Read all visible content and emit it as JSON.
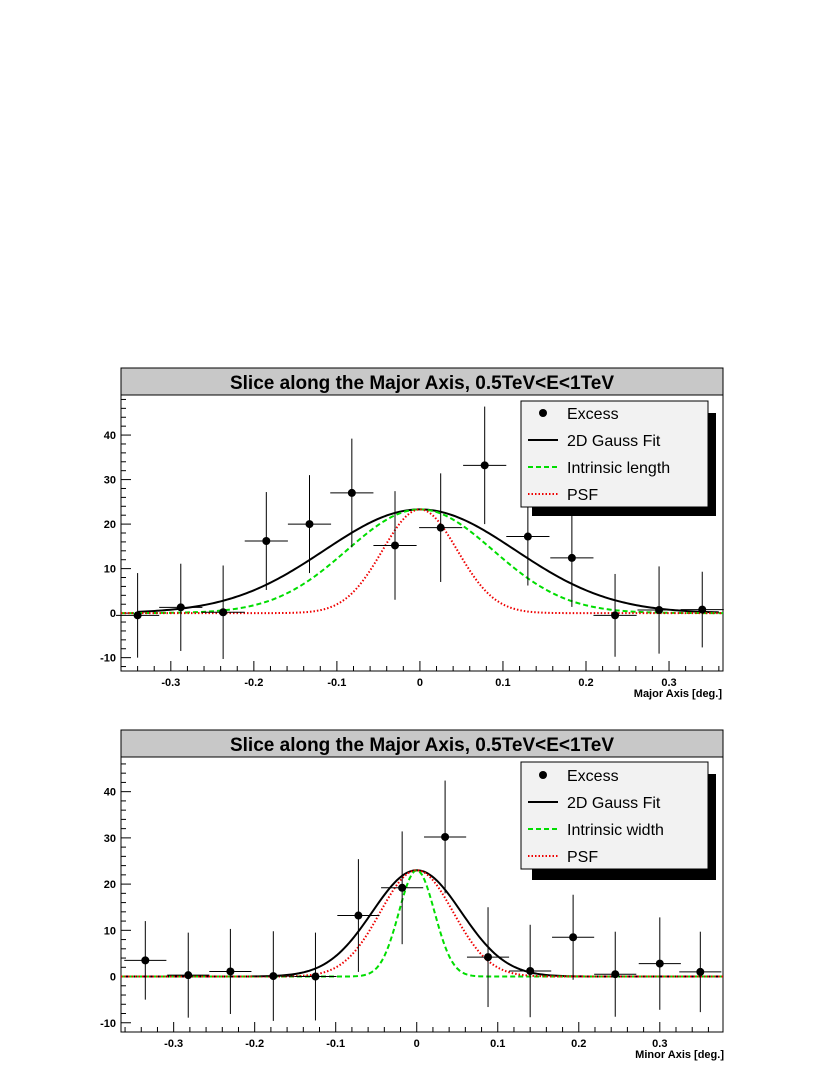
{
  "chart_data": [
    {
      "type": "scatter",
      "title": "Slice along the Major Axis, 0.5TeV<E<1TeV",
      "xlabel": "Major Axis [deg.]",
      "ylabel": "",
      "xlim": [
        -0.36,
        0.365
      ],
      "ylim": [
        -13,
        49
      ],
      "x_ticks": [
        -0.3,
        -0.2,
        -0.1,
        0,
        0.1,
        0.2,
        0.3
      ],
      "x_tick_labels": [
        "-0.3",
        "-0.2",
        "-0.1",
        "0",
        "0.1",
        "0.2",
        "0.3"
      ],
      "y_ticks": [
        -10,
        0,
        10,
        20,
        30,
        40
      ],
      "y_tick_labels": [
        "-10",
        "0",
        "10",
        "20",
        "30",
        "40"
      ],
      "grid": false,
      "legend_position": "top-right",
      "legend": [
        "Excess",
        "2D Gauss Fit",
        "Intrinsic length",
        "PSF"
      ],
      "series": [
        {
          "name": "Excess",
          "style": "points",
          "color": "#000000",
          "x": [
            -0.34,
            -0.288,
            -0.237,
            -0.185,
            -0.133,
            -0.082,
            -0.03,
            0.025,
            0.078,
            0.13,
            0.183,
            0.235,
            0.288,
            0.34
          ],
          "y": [
            -0.5,
            1.3,
            0.2,
            16.2,
            20.0,
            27.0,
            15.2,
            19.2,
            33.2,
            17.2,
            12.4,
            -0.5,
            0.7,
            0.8
          ],
          "yerr": [
            9.5,
            9.8,
            10.5,
            11,
            11,
            12.2,
            12.2,
            12.2,
            13.2,
            11,
            11,
            9.3,
            9.8,
            8.5
          ],
          "xerr": 0.026
        },
        {
          "name": "2D Gauss Fit",
          "style": "solid",
          "color": "#000000",
          "amplitude": 23.3,
          "center": 0.0,
          "sigma": 0.115,
          "x_range": [
            -0.34,
            0.36
          ]
        },
        {
          "name": "Intrinsic length",
          "style": "dashed",
          "color": "#00dd00",
          "amplitude": 23.3,
          "center": 0.0,
          "sigma": 0.088,
          "x_range": [
            -0.36,
            0.365
          ]
        },
        {
          "name": "PSF",
          "style": "dotted",
          "color": "#ee0000",
          "amplitude": 23.3,
          "center": 0.0,
          "sigma": 0.045,
          "x_range": [
            -0.36,
            0.365
          ]
        }
      ]
    },
    {
      "type": "scatter",
      "title": "Slice along the Major Axis, 0.5TeV<E<1TeV",
      "xlabel": "Minor Axis [deg.]",
      "ylabel": "",
      "xlim": [
        -0.365,
        0.378
      ],
      "ylim": [
        -12,
        47.5
      ],
      "x_ticks": [
        -0.3,
        -0.2,
        -0.1,
        0,
        0.1,
        0.2,
        0.3
      ],
      "x_tick_labels": [
        "-0.3",
        "-0.2",
        "-0.1",
        "0",
        "0.1",
        "0.2",
        "0.3"
      ],
      "y_ticks": [
        -10,
        0,
        10,
        20,
        30,
        40
      ],
      "y_tick_labels": [
        "-10",
        "0",
        "10",
        "20",
        "30",
        "40"
      ],
      "grid": false,
      "legend_position": "top-right",
      "legend": [
        "Excess",
        "2D Gauss Fit",
        "Intrinsic width",
        "PSF"
      ],
      "series": [
        {
          "name": "Excess",
          "style": "points",
          "color": "#000000",
          "x": [
            -0.335,
            -0.282,
            -0.23,
            -0.177,
            -0.125,
            -0.072,
            -0.018,
            0.035,
            0.088,
            0.14,
            0.193,
            0.245,
            0.3,
            0.35
          ],
          "y": [
            3.5,
            0.3,
            1.1,
            0.1,
            0.0,
            13.2,
            19.2,
            30.2,
            4.2,
            1.2,
            8.5,
            0.5,
            2.8,
            1.0
          ],
          "yerr": [
            8.5,
            9.2,
            9.2,
            9.7,
            9.5,
            12.2,
            12.2,
            12.2,
            10.8,
            10.0,
            9.2,
            9.2,
            10.0,
            8.7
          ],
          "xerr": 0.026
        },
        {
          "name": "2D Gauss Fit",
          "style": "solid",
          "color": "#000000",
          "amplitude": 23.0,
          "center": 0.0,
          "sigma": 0.055,
          "x_range": [
            -0.365,
            0.378
          ]
        },
        {
          "name": "Intrinsic width",
          "style": "dashed",
          "color": "#00dd00",
          "amplitude": 23.0,
          "center": 0.0,
          "sigma": 0.022,
          "x_range": [
            -0.365,
            0.378
          ]
        },
        {
          "name": "PSF",
          "style": "dotted",
          "color": "#ee0000",
          "amplitude": 23.0,
          "center": 0.0,
          "sigma": 0.045,
          "x_range": [
            -0.365,
            0.378
          ]
        }
      ]
    }
  ]
}
